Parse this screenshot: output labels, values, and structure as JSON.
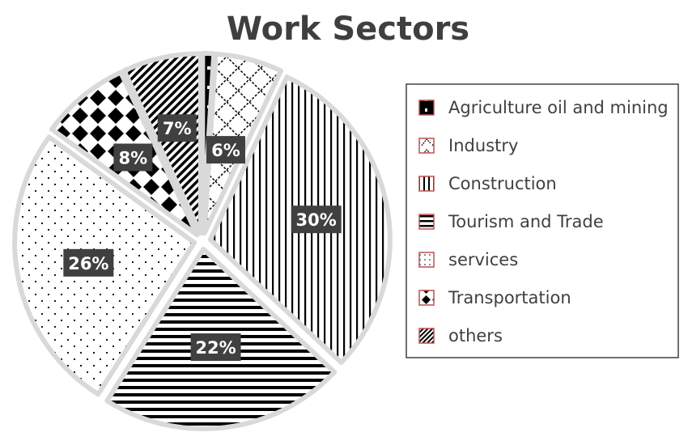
{
  "chart_data": {
    "type": "pie",
    "title": "Work Sectors",
    "series": [
      {
        "name": "Agriculture oil and mining",
        "value": 1,
        "label": "",
        "pattern": "dot-black"
      },
      {
        "name": "Industry",
        "value": 6,
        "label": "6%",
        "pattern": "brick"
      },
      {
        "name": "Construction",
        "value": 30,
        "label": "30%",
        "pattern": "vertical-lines"
      },
      {
        "name": "Tourism and Trade",
        "value": 22,
        "label": "22%",
        "pattern": "horizontal-lines"
      },
      {
        "name": "services",
        "value": 26,
        "label": "26%",
        "pattern": "dots"
      },
      {
        "name": "Transportation",
        "value": 8,
        "label": "8%",
        "pattern": "diamonds"
      },
      {
        "name": "others",
        "value": 7,
        "label": "7%",
        "pattern": "diagonal-lines"
      }
    ],
    "start_angle_deg": 0,
    "direction": "clockwise",
    "exploded": true,
    "legend_position": "right",
    "colors": {
      "pattern_ink": "#000000",
      "background": "#ffffff",
      "slice_gap": "#d9d9d9",
      "label_box": "#404040",
      "label_text": "#ffffff",
      "legend_border": "#404040",
      "legend_swatch_border": "#c0504d",
      "title": "#3f3f3f"
    }
  }
}
